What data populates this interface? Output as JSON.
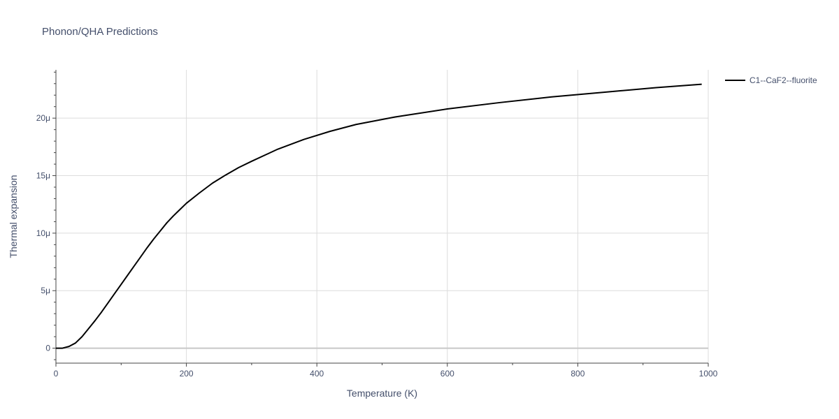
{
  "chart_data": {
    "type": "line",
    "title": "Phonon/QHA Predictions",
    "xlabel": "Temperature (K)",
    "ylabel": "Thermal expansion",
    "xlim": [
      0,
      1000
    ],
    "ylim": [
      -1.3e-06,
      2.42e-05
    ],
    "x_ticks": [
      0,
      200,
      400,
      600,
      800,
      1000
    ],
    "x_tick_labels": [
      "0",
      "200",
      "400",
      "600",
      "800",
      "1000"
    ],
    "x_minor_ticks": [
      100,
      300,
      500,
      700,
      900
    ],
    "y_ticks": [
      0,
      5e-06,
      1e-05,
      1.5e-05,
      2e-05
    ],
    "y_tick_labels": [
      "0",
      "5μ",
      "10μ",
      "15μ",
      "20μ"
    ],
    "grid": true,
    "legend_position": "top-right",
    "series": [
      {
        "name": "C1--CaF2--fluorite",
        "color": "#000000",
        "x": [
          0,
          10,
          20,
          30,
          40,
          50,
          60,
          70,
          80,
          90,
          100,
          110,
          120,
          130,
          140,
          150,
          160,
          170,
          180,
          190,
          200,
          220,
          240,
          260,
          280,
          300,
          340,
          380,
          420,
          460,
          520,
          600,
          680,
          760,
          840,
          920,
          990
        ],
        "y": [
          0,
          0,
          1.5e-07,
          4.5e-07,
          1e-06,
          1.7e-06,
          2.4e-06,
          3.15e-06,
          3.95e-06,
          4.75e-06,
          5.55e-06,
          6.35e-06,
          7.15e-06,
          7.95e-06,
          8.75e-06,
          9.5e-06,
          1.02e-05,
          1.09e-05,
          1.15e-05,
          1.205e-05,
          1.26e-05,
          1.35e-05,
          1.435e-05,
          1.505e-05,
          1.57e-05,
          1.625e-05,
          1.73e-05,
          1.815e-05,
          1.885e-05,
          1.945e-05,
          2.01e-05,
          2.08e-05,
          2.135e-05,
          2.185e-05,
          2.225e-05,
          2.265e-05,
          2.295e-05
        ]
      }
    ]
  }
}
